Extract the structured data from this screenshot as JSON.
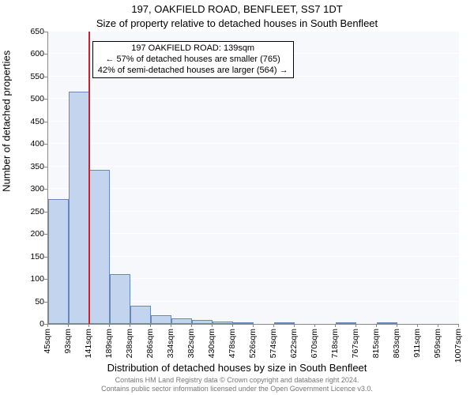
{
  "chart": {
    "type": "histogram",
    "title": "197, OAKFIELD ROAD, BENFLEET, SS7 1DT",
    "subtitle": "Size of property relative to detached houses in South Benfleet",
    "ylabel": "Number of detached properties",
    "xlabel": "Distribution of detached houses by size in South Benfleet",
    "background_color": "#f6f8fc",
    "bar_fill": "#c3d4ee",
    "bar_border": "#6a87b8",
    "grid_color": "#ffffff",
    "marker_color": "#d02030",
    "marker_x_value": 139,
    "ylim": [
      0,
      650
    ],
    "ytick_step": 50,
    "x_start": 45,
    "x_step": 48.2,
    "xticks": [
      "45sqm",
      "93sqm",
      "141sqm",
      "189sqm",
      "238sqm",
      "286sqm",
      "334sqm",
      "382sqm",
      "430sqm",
      "478sqm",
      "526sqm",
      "574sqm",
      "622sqm",
      "670sqm",
      "718sqm",
      "767sqm",
      "815sqm",
      "863sqm",
      "911sqm",
      "959sqm",
      "1007sqm"
    ],
    "values": [
      277,
      517,
      343,
      111,
      40,
      20,
      12,
      9,
      6,
      4,
      0,
      3,
      0,
      0,
      2,
      0,
      3,
      0,
      0,
      0
    ],
    "title_fontsize": 13,
    "subtitle_fontsize": 13,
    "label_fontsize": 13,
    "tick_fontsize": 10.5,
    "annotation": {
      "lines": [
        "197 OAKFIELD ROAD: 139sqm",
        "← 57% of detached houses are smaller (765)",
        "42% of semi-detached houses are larger (564) →"
      ],
      "border_color": "#000000",
      "background": "#ffffff",
      "fontsize": 11
    },
    "footer": {
      "line1": "Contains HM Land Registry data © Crown copyright and database right 2024.",
      "line2": "Contains public sector information licensed under the Open Government Licence v3.0.",
      "color": "#777777",
      "fontsize": 9
    }
  }
}
